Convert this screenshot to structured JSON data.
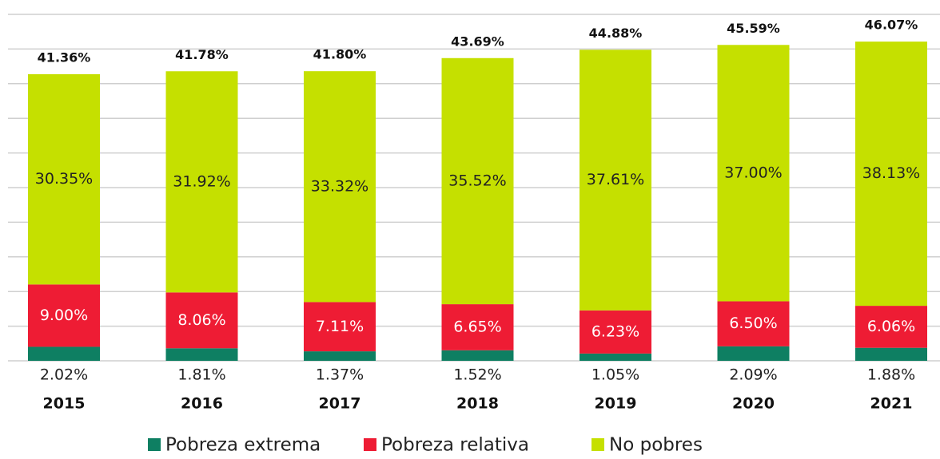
{
  "chart_data": {
    "type": "stacked_bar",
    "categories": [
      "2015",
      "2016",
      "2017",
      "2018",
      "2019",
      "2020",
      "2021"
    ],
    "series": [
      {
        "name": "Pobreza extrema",
        "color": "#0e7f62",
        "values": [
          2.02,
          1.81,
          1.37,
          1.52,
          1.05,
          2.09,
          1.88
        ],
        "value_labels": [
          "2.02%",
          "1.81%",
          "1.37%",
          "1.52%",
          "1.05%",
          "2.09%",
          "1.88%"
        ]
      },
      {
        "name": "Pobreza relativa",
        "color": "#ee1c34",
        "values": [
          9.0,
          8.06,
          7.11,
          6.65,
          6.23,
          6.5,
          6.06
        ],
        "value_labels": [
          "9.00%",
          "8.06%",
          "7.11%",
          "6.65%",
          "6.23%",
          "6.50%",
          "6.06%"
        ]
      },
      {
        "name": "No pobres",
        "color": "#c5e000",
        "values": [
          30.35,
          31.92,
          33.32,
          35.52,
          37.61,
          37.0,
          38.13
        ],
        "value_labels": [
          "30.35%",
          "31.92%",
          "33.32%",
          "35.52%",
          "37.61%",
          "37.00%",
          "38.13%"
        ]
      }
    ],
    "total_labels": [
      "41.36%",
      "41.78%",
      "41.80%",
      "43.69%",
      "44.88%",
      "45.59%",
      "46.07%"
    ],
    "ylim": [
      0,
      52
    ],
    "yticks": [
      0,
      5,
      10,
      15,
      20,
      25,
      30,
      35,
      40,
      45,
      50
    ],
    "grid": true
  }
}
